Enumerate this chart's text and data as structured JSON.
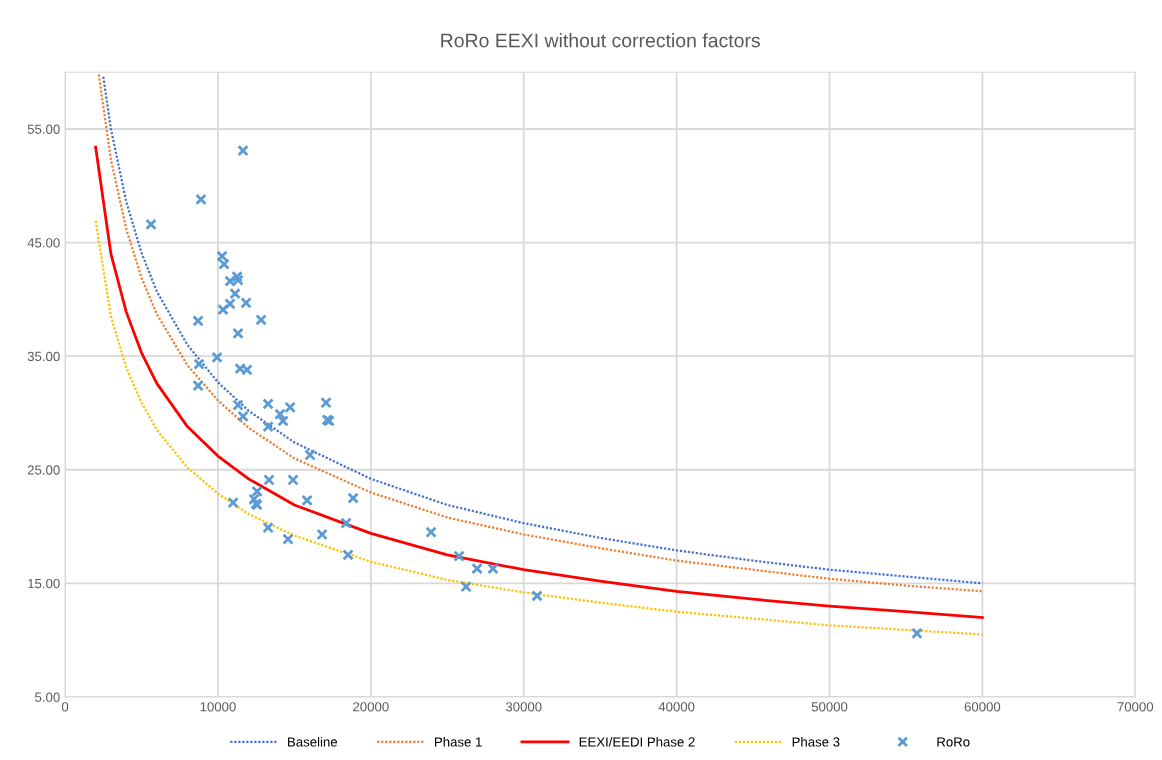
{
  "chart_data": {
    "type": "line",
    "title": "RoRo EEXI without correction factors",
    "xlim": [
      0,
      70000
    ],
    "xticks": [
      0,
      10000,
      20000,
      30000,
      40000,
      50000,
      60000,
      70000
    ],
    "ylim": [
      5,
      60
    ],
    "yticks": [
      {
        "value": 5,
        "label": "5.00"
      },
      {
        "value": 15,
        "label": "15.00"
      },
      {
        "value": 25,
        "label": "25.00"
      },
      {
        "value": 35,
        "label": "35.00"
      },
      {
        "value": 45,
        "label": "45.00"
      },
      {
        "value": 55,
        "label": "55.00"
      }
    ],
    "grid": true,
    "legend": "bottom",
    "series": [
      {
        "name": "Baseline",
        "color": "#4472c4",
        "line_style": "dotted",
        "marker": "none",
        "x": [
          2500,
          3000,
          4000,
          5000,
          6000,
          8000,
          10000,
          12000,
          15000,
          20000,
          25000,
          30000,
          35000,
          40000,
          45000,
          50000,
          55000,
          60000
        ],
        "values": [
          59.6,
          55.0,
          48.6,
          44.1,
          40.7,
          36.0,
          32.7,
          30.2,
          27.4,
          24.2,
          21.9,
          20.3,
          19.0,
          17.9,
          17.0,
          16.2,
          15.6,
          15.0
        ]
      },
      {
        "name": "Phase 1",
        "color": "#ed7d31",
        "line_style": "dotted",
        "marker": "none",
        "x": [
          2200,
          3000,
          4000,
          5000,
          6000,
          8000,
          10000,
          12000,
          15000,
          20000,
          25000,
          30000,
          35000,
          40000,
          45000,
          50000,
          55000,
          60000
        ],
        "values": [
          59.8,
          52.3,
          46.2,
          41.9,
          38.7,
          34.2,
          31.1,
          28.7,
          26.0,
          23.0,
          20.8,
          19.3,
          18.1,
          17.0,
          16.2,
          15.4,
          14.8,
          14.3
        ]
      },
      {
        "name": "EEXI/EEDI Phase 2",
        "color": "#ff0000",
        "line_style": "solid",
        "marker": "none",
        "x": [
          2000,
          3000,
          4000,
          5000,
          6000,
          8000,
          10000,
          12000,
          15000,
          20000,
          25000,
          30000,
          35000,
          40000,
          45000,
          50000,
          55000,
          60000
        ],
        "values": [
          53.4,
          44.0,
          38.9,
          35.3,
          32.6,
          28.8,
          26.2,
          24.2,
          21.9,
          19.4,
          17.5,
          16.2,
          15.2,
          14.3,
          13.6,
          13.0,
          12.5,
          12.0
        ]
      },
      {
        "name": "Phase 3",
        "color": "#ffc000",
        "line_style": "dotted",
        "marker": "none",
        "x": [
          2000,
          3000,
          4000,
          5000,
          6000,
          8000,
          10000,
          12000,
          15000,
          20000,
          25000,
          30000,
          35000,
          40000,
          45000,
          50000,
          55000,
          60000
        ],
        "values": [
          46.9,
          38.5,
          34.0,
          30.9,
          28.5,
          25.2,
          22.9,
          21.1,
          19.2,
          16.9,
          15.3,
          14.2,
          13.3,
          12.5,
          11.9,
          11.3,
          10.9,
          10.5
        ]
      },
      {
        "name": "RoRo",
        "color": "#5b9bd5",
        "type": "scatter",
        "marker": "cross",
        "x": [
          11640,
          8890,
          5620,
          10270,
          10400,
          10790,
          11250,
          11310,
          11120,
          10790,
          11840,
          10330,
          12820,
          8700,
          11310,
          9940,
          8760,
          8700,
          11450,
          11900,
          11310,
          13280,
          11640,
          14720,
          14060,
          14260,
          17070,
          17140,
          17270,
          13280,
          16020,
          13340,
          14910,
          12560,
          10990,
          12360,
          12490,
          12560,
          15830,
          18840,
          18380,
          13280,
          14580,
          16810,
          18510,
          23940,
          25770,
          26950,
          27990,
          26230,
          30870,
          55720
        ],
        "values": [
          53.1,
          48.8,
          46.6,
          43.8,
          43.1,
          41.6,
          42.0,
          41.7,
          40.5,
          39.6,
          39.7,
          39.1,
          38.2,
          38.1,
          37.0,
          34.9,
          34.3,
          32.4,
          33.9,
          33.8,
          30.7,
          30.8,
          29.7,
          30.5,
          29.9,
          29.3,
          30.9,
          29.4,
          29.3,
          28.8,
          26.3,
          24.1,
          24.1,
          23.1,
          22.1,
          22.4,
          22.0,
          21.9,
          22.3,
          22.5,
          20.3,
          19.9,
          18.9,
          19.3,
          17.5,
          19.5,
          17.4,
          16.3,
          16.3,
          14.7,
          13.9,
          10.6
        ]
      }
    ]
  }
}
